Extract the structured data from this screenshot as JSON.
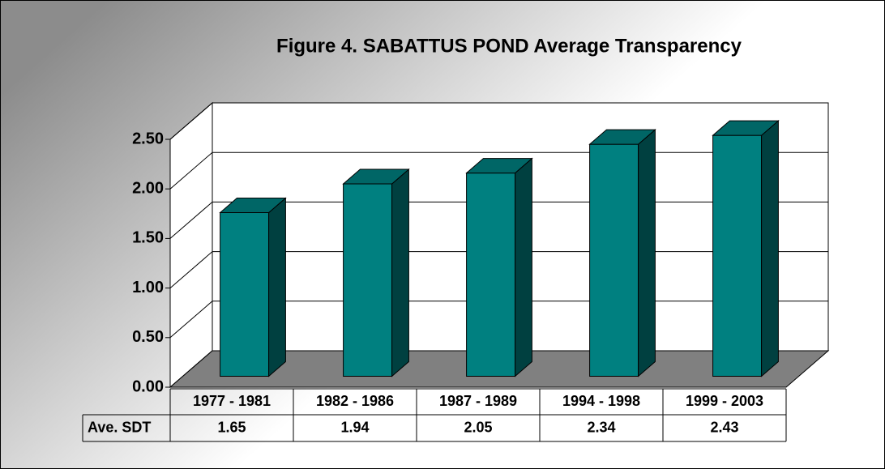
{
  "chart_data": {
    "type": "bar3d",
    "title": "Figure 4. SABATTUS POND Average Transparency",
    "categories": [
      "1977 - 1981",
      "1982 - 1986",
      "1987 - 1989",
      "1994 - 1998",
      "1999 - 2003"
    ],
    "series": [
      {
        "name": "Ave. SDT",
        "color": "#008080",
        "values": [
          1.65,
          1.94,
          2.05,
          2.34,
          2.43
        ]
      }
    ],
    "ylim": [
      0,
      2.5
    ],
    "yticks": [
      {
        "value": 0,
        "label": "0.00"
      },
      {
        "value": 0.5,
        "label": "0.50"
      },
      {
        "value": 1,
        "label": "1.00"
      },
      {
        "value": 1.5,
        "label": "1.50"
      },
      {
        "value": 2,
        "label": "2.00"
      },
      {
        "value": 2.5,
        "label": "2.50"
      }
    ],
    "grid": true
  }
}
